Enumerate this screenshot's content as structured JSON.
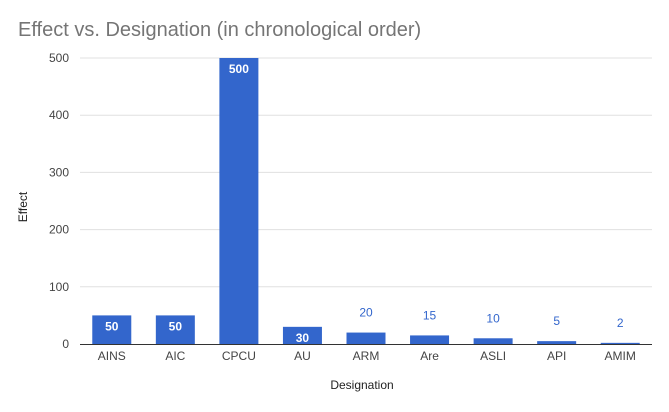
{
  "chart_data": {
    "type": "bar",
    "title": "Effect vs. Designation (in chronological order)",
    "xlabel": "Designation",
    "ylabel": "Effect",
    "categories": [
      "AINS",
      "AIC",
      "CPCU",
      "AU",
      "ARM",
      "Are",
      "ASLI",
      "API",
      "AMIM"
    ],
    "values": [
      50,
      50,
      500,
      30,
      20,
      15,
      10,
      5,
      2
    ],
    "ylim": [
      0,
      500
    ],
    "yticks": [
      0,
      100,
      200,
      300,
      400,
      500
    ],
    "grid": true,
    "legend": "none",
    "colors": {
      "bar": "#3366cc",
      "grid": "#e0e0e0",
      "baseline": "#333333"
    }
  }
}
